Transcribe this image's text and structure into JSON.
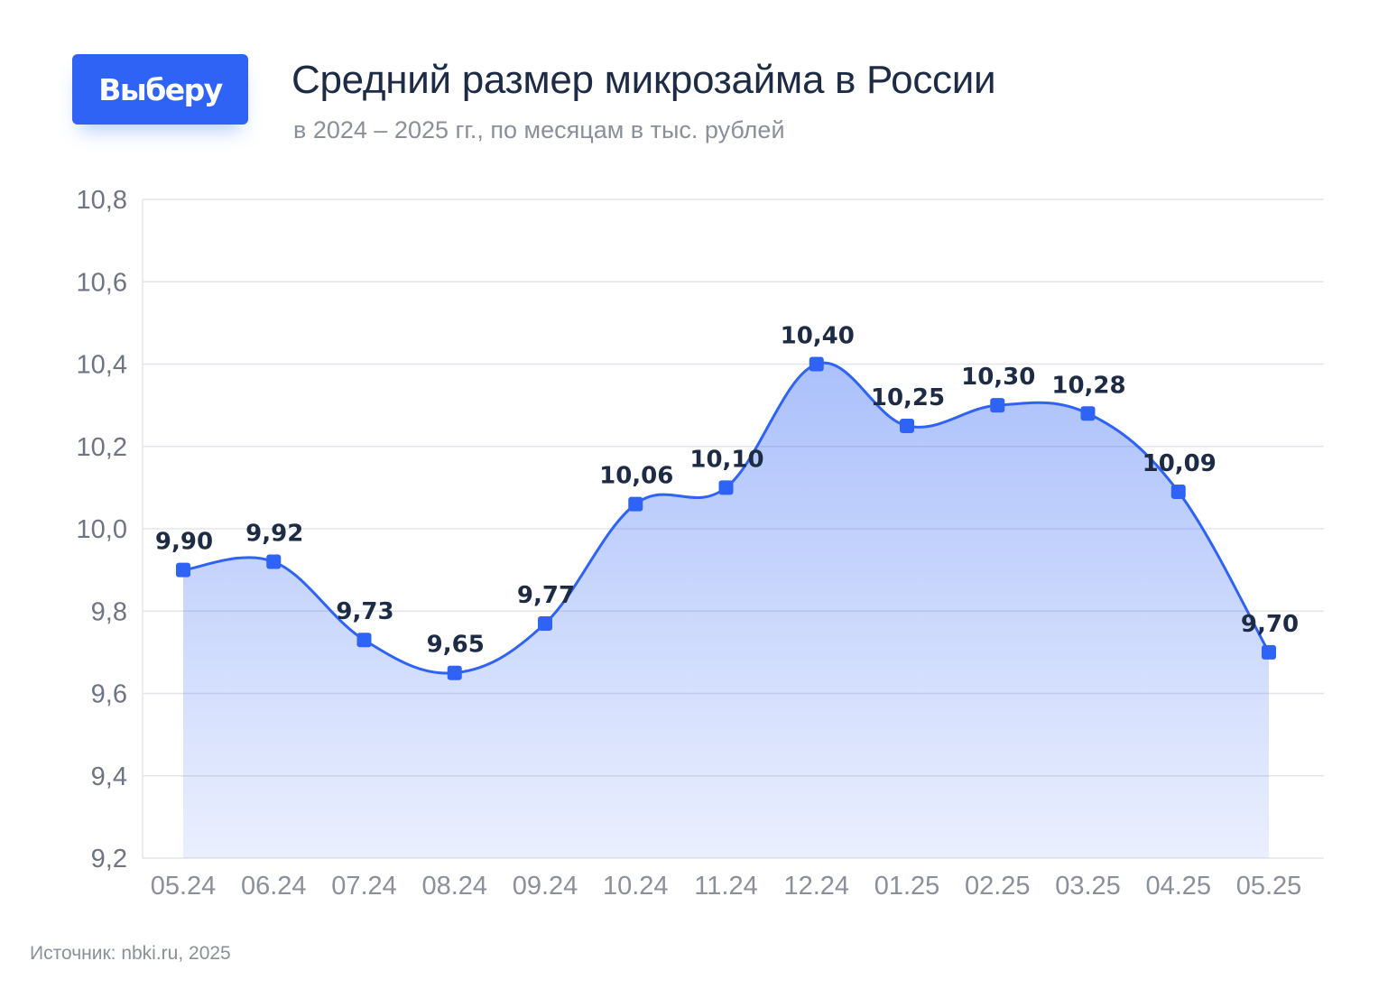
{
  "brand": {
    "logo_text": "Выберу",
    "accent_color": "#2e63f5"
  },
  "header": {
    "title": "Средний размер микрозайма в России",
    "subtitle": "в 2024 – 2025 гг., по месяцам в тыс. рублей"
  },
  "footer": {
    "source": "Источник: nbki.ru, 2025"
  },
  "chart_data": {
    "type": "area",
    "categories": [
      "05.24",
      "06.24",
      "07.24",
      "08.24",
      "09.24",
      "10.24",
      "11.24",
      "12.24",
      "01.25",
      "02.25",
      "03.25",
      "04.25",
      "05.25"
    ],
    "values": [
      9.9,
      9.92,
      9.73,
      9.65,
      9.77,
      10.06,
      10.1,
      10.4,
      10.25,
      10.3,
      10.28,
      10.09,
      9.7
    ],
    "data_labels": [
      "9,90",
      "9,92",
      "9,73",
      "9,65",
      "9,77",
      "10,06",
      "10,10",
      "10,40",
      "10,25",
      "10,30",
      "10,28",
      "10,09",
      "9,70"
    ],
    "yticks": [
      9.2,
      9.4,
      9.6,
      9.8,
      10.0,
      10.2,
      10.4,
      10.6,
      10.8
    ],
    "ytick_labels": [
      "9,2",
      "9,4",
      "9,6",
      "9,8",
      "10,0",
      "10,2",
      "10,4",
      "10,6",
      "10,8"
    ],
    "ylim": [
      9.2,
      10.8
    ],
    "xlabel": "",
    "ylabel": "",
    "grid": true,
    "legend": "none",
    "line_color": "#2e63f5"
  }
}
